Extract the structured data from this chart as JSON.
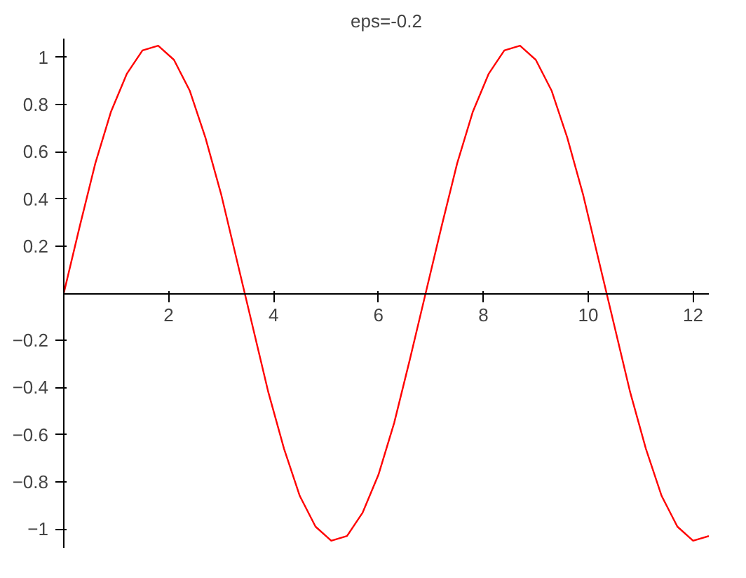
{
  "chart_data": {
    "type": "line",
    "title": "eps=-0.2",
    "x": [
      0,
      0.3,
      0.6,
      0.9,
      1.2,
      1.5,
      1.8,
      2.1,
      2.4,
      2.7,
      3.0,
      3.3,
      3.6,
      3.9,
      4.2,
      4.5,
      4.8,
      5.1,
      5.4,
      5.7,
      6.0,
      6.3,
      6.6,
      6.9,
      7.2,
      7.5,
      7.8,
      8.1,
      8.4,
      8.7,
      9.0,
      9.3,
      9.6,
      9.9,
      10.2,
      10.5,
      10.8,
      11.1,
      11.4,
      11.7,
      12.0,
      12.3
    ],
    "series": [
      {
        "color": "#ff0000",
        "values": [
          0,
          0.28,
          0.55,
          0.77,
          0.93,
          1.03,
          1.05,
          0.99,
          0.86,
          0.66,
          0.42,
          0.14,
          -0.14,
          -0.42,
          -0.66,
          -0.86,
          -0.99,
          -1.05,
          -1.03,
          -0.93,
          -0.77,
          -0.55,
          -0.28,
          0,
          0.28,
          0.55,
          0.77,
          0.93,
          1.03,
          1.05,
          0.99,
          0.86,
          0.66,
          0.42,
          0.14,
          -0.14,
          -0.42,
          -0.66,
          -0.86,
          -0.99,
          -1.05,
          -1.03
        ]
      }
    ],
    "xlim": [
      0,
      12.3
    ],
    "ylim": [
      -1.08,
      1.08
    ],
    "xticks": [
      2,
      4,
      6,
      8,
      10,
      12
    ],
    "yticks": [
      -1,
      -0.8,
      -0.6,
      -0.4,
      -0.2,
      0.2,
      0.4,
      0.6,
      0.8,
      1
    ],
    "grid": false,
    "marker": "none",
    "line_style": "solid"
  }
}
